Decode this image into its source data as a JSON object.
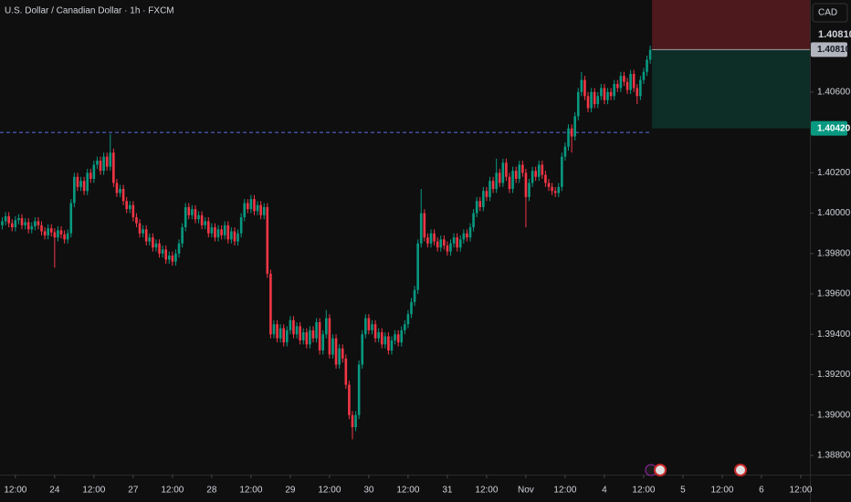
{
  "chart_data": {
    "type": "candlestick",
    "title": "U.S. Dollar / Canadian Dollar · 1h · FXCM",
    "currency": "CAD",
    "up_color": "#089981",
    "down_color": "#f23645",
    "ylim": [
      1.38705,
      1.41056
    ],
    "yticks": [
      {
        "value": 1.406,
        "label": "1.40600"
      },
      {
        "value": 1.402,
        "label": "1.40200"
      },
      {
        "value": 1.4,
        "label": "1.40000"
      },
      {
        "value": 1.398,
        "label": "1.39800"
      },
      {
        "value": 1.396,
        "label": "1.39600"
      },
      {
        "value": 1.394,
        "label": "1.39400"
      },
      {
        "value": 1.392,
        "label": "1.39200"
      },
      {
        "value": 1.39,
        "label": "1.39000"
      },
      {
        "value": 1.388,
        "label": "1.38800"
      }
    ],
    "xlim": [
      -0.7,
      246.8
    ],
    "xticks": [
      {
        "value": 4,
        "label": "12:00"
      },
      {
        "value": 16,
        "label": "24"
      },
      {
        "value": 28,
        "label": "12:00"
      },
      {
        "value": 40,
        "label": "27"
      },
      {
        "value": 52,
        "label": "12:00"
      },
      {
        "value": 64,
        "label": "28"
      },
      {
        "value": 76,
        "label": "12:00"
      },
      {
        "value": 88,
        "label": "29"
      },
      {
        "value": 100,
        "label": "12:00"
      },
      {
        "value": 112,
        "label": "30"
      },
      {
        "value": 124,
        "label": "12:00"
      },
      {
        "value": 136,
        "label": "31"
      },
      {
        "value": 148,
        "label": "12:00"
      },
      {
        "value": 160,
        "label": "Nov"
      },
      {
        "value": 172,
        "label": "12:00"
      },
      {
        "value": 184,
        "label": "4"
      },
      {
        "value": 196,
        "label": "12:00"
      },
      {
        "value": 208,
        "label": "5"
      },
      {
        "value": 220,
        "label": "12:00"
      },
      {
        "value": 232,
        "label": "6"
      },
      {
        "value": 244,
        "label": "12:00"
      }
    ],
    "price_text": "1.40810",
    "entry": {
      "value": 1.4081,
      "label": "1.40810"
    },
    "target": {
      "value": 1.4042,
      "label": "1.40420"
    },
    "level": 1.404,
    "candles": [
      [
        1.3994,
        1.3998,
        1.3992,
        1.3996
      ],
      [
        1.3996,
        1.40005,
        1.3994,
        1.39985
      ],
      [
        1.39985,
        1.40005,
        1.3993,
        1.3995
      ],
      [
        1.3995,
        1.3997,
        1.3991,
        1.3993
      ],
      [
        1.3993,
        1.39985,
        1.3991,
        1.39965
      ],
      [
        1.39965,
        1.39995,
        1.39945,
        1.39975
      ],
      [
        1.39975,
        1.39995,
        1.3992,
        1.3994
      ],
      [
        1.3994,
        1.39975,
        1.3992,
        1.39955
      ],
      [
        1.39955,
        1.39975,
        1.399,
        1.3992
      ],
      [
        1.3992,
        1.39955,
        1.399,
        1.39935
      ],
      [
        1.39935,
        1.3998,
        1.39915,
        1.3996
      ],
      [
        1.3996,
        1.3998,
        1.3992,
        1.3994
      ],
      [
        1.3994,
        1.3996,
        1.3989,
        1.3991
      ],
      [
        1.3991,
        1.3993,
        1.3987,
        1.3989
      ],
      [
        1.3989,
        1.39945,
        1.3987,
        1.39925
      ],
      [
        1.39925,
        1.39945,
        1.39885,
        1.39905
      ],
      [
        1.39905,
        1.39925,
        1.3973,
        1.3988
      ],
      [
        1.3988,
        1.39935,
        1.3986,
        1.39915
      ],
      [
        1.39915,
        1.39935,
        1.39875,
        1.39895
      ],
      [
        1.39895,
        1.39915,
        1.3985,
        1.3987
      ],
      [
        1.3987,
        1.3992,
        1.3985,
        1.399
      ],
      [
        1.399,
        1.4007,
        1.3988,
        1.4005
      ],
      [
        1.4005,
        1.402,
        1.4003,
        1.4018
      ],
      [
        1.4018,
        1.402,
        1.4011,
        1.4013
      ],
      [
        1.4013,
        1.4018,
        1.4011,
        1.4016
      ],
      [
        1.4016,
        1.4018,
        1.4009,
        1.4011
      ],
      [
        1.4011,
        1.4022,
        1.4009,
        1.402
      ],
      [
        1.402,
        1.4022,
        1.4015,
        1.4017
      ],
      [
        1.4017,
        1.4026,
        1.4015,
        1.4024
      ],
      [
        1.4024,
        1.4028,
        1.4022,
        1.4026
      ],
      [
        1.4026,
        1.4028,
        1.4019,
        1.4021
      ],
      [
        1.4021,
        1.403,
        1.4019,
        1.4028
      ],
      [
        1.4028,
        1.403,
        1.4021,
        1.4023
      ],
      [
        1.4023,
        1.40392,
        1.4021,
        1.403
      ],
      [
        1.403,
        1.4032,
        1.4013,
        1.4015
      ],
      [
        1.4015,
        1.4017,
        1.4008,
        1.401
      ],
      [
        1.401,
        1.4014,
        1.4008,
        1.4012
      ],
      [
        1.4012,
        1.4014,
        1.4004,
        1.4006
      ],
      [
        1.4006,
        1.4008,
        1.4,
        1.4002
      ],
      [
        1.4002,
        1.4006,
        1.4,
        1.4004
      ],
      [
        1.4004,
        1.4006,
        1.3996,
        1.3998
      ],
      [
        1.3998,
        1.4,
        1.3993,
        1.3995
      ],
      [
        1.3995,
        1.3997,
        1.3988,
        1.399
      ],
      [
        1.399,
        1.3994,
        1.3988,
        1.3992
      ],
      [
        1.3992,
        1.3994,
        1.3984,
        1.3986
      ],
      [
        1.3986,
        1.399,
        1.3984,
        1.3988
      ],
      [
        1.3988,
        1.399,
        1.3981,
        1.3983
      ],
      [
        1.3983,
        1.3987,
        1.3981,
        1.3985
      ],
      [
        1.3985,
        1.3987,
        1.3978,
        1.398
      ],
      [
        1.398,
        1.3984,
        1.3978,
        1.3982
      ],
      [
        1.3982,
        1.3984,
        1.3975,
        1.3977
      ],
      [
        1.3977,
        1.3981,
        1.3975,
        1.3979
      ],
      [
        1.3979,
        1.3981,
        1.3974,
        1.3976
      ],
      [
        1.3976,
        1.3982,
        1.3974,
        1.398
      ],
      [
        1.398,
        1.3987,
        1.3978,
        1.3985
      ],
      [
        1.3985,
        1.3995,
        1.3983,
        1.3993
      ],
      [
        1.3993,
        1.4005,
        1.3991,
        1.4003
      ],
      [
        1.4003,
        1.4005,
        1.3997,
        1.3999
      ],
      [
        1.3999,
        1.4004,
        1.3997,
        1.4002
      ],
      [
        1.4002,
        1.4004,
        1.3995,
        1.3997
      ],
      [
        1.3997,
        1.4001,
        1.3995,
        1.3999
      ],
      [
        1.3999,
        1.4001,
        1.3992,
        1.3994
      ],
      [
        1.3994,
        1.3998,
        1.3992,
        1.3996
      ],
      [
        1.3996,
        1.3998,
        1.3988,
        1.399
      ],
      [
        1.399,
        1.3995,
        1.3988,
        1.3993
      ],
      [
        1.3993,
        1.3995,
        1.3986,
        1.3988
      ],
      [
        1.3988,
        1.3994,
        1.3986,
        1.3992
      ],
      [
        1.3992,
        1.3994,
        1.3987,
        1.3989
      ],
      [
        1.3989,
        1.3996,
        1.3987,
        1.3994
      ],
      [
        1.3994,
        1.3996,
        1.3985,
        1.3987
      ],
      [
        1.3987,
        1.3993,
        1.3985,
        1.3991
      ],
      [
        1.3991,
        1.3993,
        1.3984,
        1.3986
      ],
      [
        1.3986,
        1.3992,
        1.3984,
        1.399
      ],
      [
        1.399,
        1.4,
        1.3988,
        1.3998
      ],
      [
        1.3998,
        1.4007,
        1.3996,
        1.4005
      ],
      [
        1.4005,
        1.4007,
        1.4,
        1.4002
      ],
      [
        1.4002,
        1.4009,
        1.4,
        1.4007
      ],
      [
        1.4007,
        1.4009,
        1.3999,
        1.4001
      ],
      [
        1.4001,
        1.4006,
        1.3999,
        1.4004
      ],
      [
        1.4004,
        1.4006,
        1.3997,
        1.3999
      ],
      [
        1.3999,
        1.4005,
        1.3997,
        1.4003
      ],
      [
        1.4003,
        1.4005,
        1.3968,
        1.397
      ],
      [
        1.397,
        1.3972,
        1.3938,
        1.394
      ],
      [
        1.394,
        1.3947,
        1.3938,
        1.3945
      ],
      [
        1.3945,
        1.3947,
        1.3936,
        1.3938
      ],
      [
        1.3938,
        1.3945,
        1.3936,
        1.3943
      ],
      [
        1.3943,
        1.3945,
        1.3934,
        1.3936
      ],
      [
        1.3936,
        1.3944,
        1.3934,
        1.3942
      ],
      [
        1.3942,
        1.3949,
        1.394,
        1.3947
      ],
      [
        1.3947,
        1.3949,
        1.3938,
        1.394
      ],
      [
        1.394,
        1.3946,
        1.3938,
        1.3944
      ],
      [
        1.3944,
        1.3946,
        1.3935,
        1.3937
      ],
      [
        1.3937,
        1.3943,
        1.3935,
        1.3941
      ],
      [
        1.3941,
        1.3943,
        1.3933,
        1.3935
      ],
      [
        1.3935,
        1.3944,
        1.3933,
        1.3942
      ],
      [
        1.3942,
        1.3944,
        1.3936,
        1.3938
      ],
      [
        1.3938,
        1.3948,
        1.3936,
        1.3946
      ],
      [
        1.3946,
        1.3948,
        1.393,
        1.3932
      ],
      [
        1.3932,
        1.3942,
        1.393,
        1.394
      ],
      [
        1.394,
        1.3952,
        1.3938,
        1.3948
      ],
      [
        1.3948,
        1.395,
        1.3928,
        1.393
      ],
      [
        1.393,
        1.394,
        1.3928,
        1.3938
      ],
      [
        1.3938,
        1.394,
        1.3923,
        1.3925
      ],
      [
        1.3925,
        1.3935,
        1.3923,
        1.3933
      ],
      [
        1.3933,
        1.3935,
        1.3926,
        1.3928
      ],
      [
        1.3928,
        1.393,
        1.3913,
        1.3915
      ],
      [
        1.3915,
        1.3917,
        1.3898,
        1.39
      ],
      [
        1.39,
        1.3902,
        1.3888,
        1.3894
      ],
      [
        1.3894,
        1.3902,
        1.3892,
        1.39
      ],
      [
        1.39,
        1.3927,
        1.3898,
        1.3925
      ],
      [
        1.3925,
        1.3942,
        1.3923,
        1.394
      ],
      [
        1.394,
        1.395,
        1.3938,
        1.3948
      ],
      [
        1.3948,
        1.395,
        1.394,
        1.3942
      ],
      [
        1.3942,
        1.3947,
        1.394,
        1.3945
      ],
      [
        1.3945,
        1.3947,
        1.3936,
        1.3938
      ],
      [
        1.3938,
        1.3943,
        1.3936,
        1.3941
      ],
      [
        1.3941,
        1.3943,
        1.3933,
        1.3935
      ],
      [
        1.3935,
        1.3941,
        1.3933,
        1.3939
      ],
      [
        1.3939,
        1.3941,
        1.393,
        1.3932
      ],
      [
        1.3932,
        1.3939,
        1.393,
        1.3937
      ],
      [
        1.3937,
        1.3942,
        1.3935,
        1.394
      ],
      [
        1.394,
        1.3942,
        1.3934,
        1.3936
      ],
      [
        1.3936,
        1.3944,
        1.3934,
        1.3942
      ],
      [
        1.3942,
        1.3947,
        1.394,
        1.3945
      ],
      [
        1.3945,
        1.3952,
        1.3943,
        1.395
      ],
      [
        1.395,
        1.3958,
        1.3948,
        1.3956
      ],
      [
        1.3956,
        1.3964,
        1.3954,
        1.3962
      ],
      [
        1.3962,
        1.3987,
        1.396,
        1.3985
      ],
      [
        1.3985,
        1.4012,
        1.3983,
        1.4
      ],
      [
        1.4,
        1.4002,
        1.3986,
        1.3988
      ],
      [
        1.3988,
        1.399,
        1.3983,
        1.3985
      ],
      [
        1.3985,
        1.3992,
        1.3983,
        1.399
      ],
      [
        1.399,
        1.3992,
        1.3984,
        1.3986
      ],
      [
        1.3986,
        1.3988,
        1.3981,
        1.3983
      ],
      [
        1.3983,
        1.3989,
        1.3981,
        1.3987
      ],
      [
        1.3987,
        1.3989,
        1.3982,
        1.3984
      ],
      [
        1.3984,
        1.3986,
        1.3979,
        1.3981
      ],
      [
        1.3981,
        1.3987,
        1.3979,
        1.3985
      ],
      [
        1.3985,
        1.399,
        1.3983,
        1.3988
      ],
      [
        1.3988,
        1.399,
        1.3981,
        1.3983
      ],
      [
        1.3983,
        1.3989,
        1.3981,
        1.3987
      ],
      [
        1.3987,
        1.3992,
        1.3985,
        1.399
      ],
      [
        1.399,
        1.3992,
        1.3986,
        1.3988
      ],
      [
        1.3988,
        1.3995,
        1.3986,
        1.3993
      ],
      [
        1.3993,
        1.4002,
        1.3991,
        1.4
      ],
      [
        1.4,
        1.4008,
        1.3998,
        1.4006
      ],
      [
        1.4006,
        1.4008,
        1.4001,
        1.4003
      ],
      [
        1.4003,
        1.4013,
        1.4001,
        1.4011
      ],
      [
        1.4011,
        1.4013,
        1.4006,
        1.4008
      ],
      [
        1.4008,
        1.4018,
        1.4006,
        1.4016
      ],
      [
        1.4016,
        1.4018,
        1.401,
        1.4012
      ],
      [
        1.4012,
        1.4027,
        1.401,
        1.402
      ],
      [
        1.402,
        1.4022,
        1.4013,
        1.4015
      ],
      [
        1.4015,
        1.4027,
        1.4013,
        1.4025
      ],
      [
        1.4025,
        1.4027,
        1.4016,
        1.4018
      ],
      [
        1.4018,
        1.402,
        1.401,
        1.4012
      ],
      [
        1.4012,
        1.4023,
        1.401,
        1.4021
      ],
      [
        1.4021,
        1.4023,
        1.4015,
        1.4017
      ],
      [
        1.4017,
        1.4026,
        1.4015,
        1.4024
      ],
      [
        1.4024,
        1.4026,
        1.4018,
        1.402
      ],
      [
        1.402,
        1.4022,
        1.3993,
        1.4008
      ],
      [
        1.4008,
        1.4017,
        1.4006,
        1.4015
      ],
      [
        1.4015,
        1.4023,
        1.4013,
        1.4021
      ],
      [
        1.4021,
        1.4023,
        1.4016,
        1.4018
      ],
      [
        1.4018,
        1.4026,
        1.4016,
        1.4024
      ],
      [
        1.4024,
        1.4026,
        1.4017,
        1.4019
      ],
      [
        1.4019,
        1.4021,
        1.4013,
        1.4015
      ],
      [
        1.4015,
        1.4017,
        1.4011,
        1.4013
      ],
      [
        1.4013,
        1.4015,
        1.4009,
        1.4011
      ],
      [
        1.4011,
        1.4013,
        1.4008,
        1.401
      ],
      [
        1.401,
        1.4015,
        1.4008,
        1.4013
      ],
      [
        1.4013,
        1.403,
        1.4011,
        1.4028
      ],
      [
        1.4028,
        1.4035,
        1.4026,
        1.4033
      ],
      [
        1.4033,
        1.4044,
        1.4031,
        1.4042
      ],
      [
        1.4042,
        1.4044,
        1.403,
        1.4038
      ],
      [
        1.4038,
        1.405,
        1.4036,
        1.4048
      ],
      [
        1.4048,
        1.4062,
        1.4046,
        1.406
      ],
      [
        1.406,
        1.407,
        1.4058,
        1.4066
      ],
      [
        1.4066,
        1.4068,
        1.4056,
        1.4058
      ],
      [
        1.4058,
        1.406,
        1.405,
        1.4052
      ],
      [
        1.4052,
        1.4062,
        1.405,
        1.406
      ],
      [
        1.406,
        1.4062,
        1.4052,
        1.4054
      ],
      [
        1.4054,
        1.406,
        1.4052,
        1.4058
      ],
      [
        1.4058,
        1.4064,
        1.4056,
        1.4062
      ],
      [
        1.4062,
        1.4064,
        1.4054,
        1.4056
      ],
      [
        1.4056,
        1.4062,
        1.4054,
        1.406
      ],
      [
        1.406,
        1.4062,
        1.4056,
        1.4058
      ],
      [
        1.4058,
        1.4066,
        1.4056,
        1.4064
      ],
      [
        1.4064,
        1.4066,
        1.406,
        1.4062
      ],
      [
        1.4062,
        1.407,
        1.406,
        1.4068
      ],
      [
        1.4068,
        1.407,
        1.4063,
        1.4065
      ],
      [
        1.4065,
        1.4067,
        1.4059,
        1.4061
      ],
      [
        1.4061,
        1.4071,
        1.4059,
        1.4069
      ],
      [
        1.4069,
        1.4071,
        1.406,
        1.4062
      ],
      [
        1.4062,
        1.4064,
        1.4054,
        1.4058
      ],
      [
        1.4058,
        1.4068,
        1.4056,
        1.4066
      ],
      [
        1.4066,
        1.4072,
        1.4064,
        1.407
      ],
      [
        1.407,
        1.4078,
        1.4068,
        1.4076
      ],
      [
        1.4076,
        1.4083,
        1.4074,
        1.4081
      ]
    ]
  }
}
